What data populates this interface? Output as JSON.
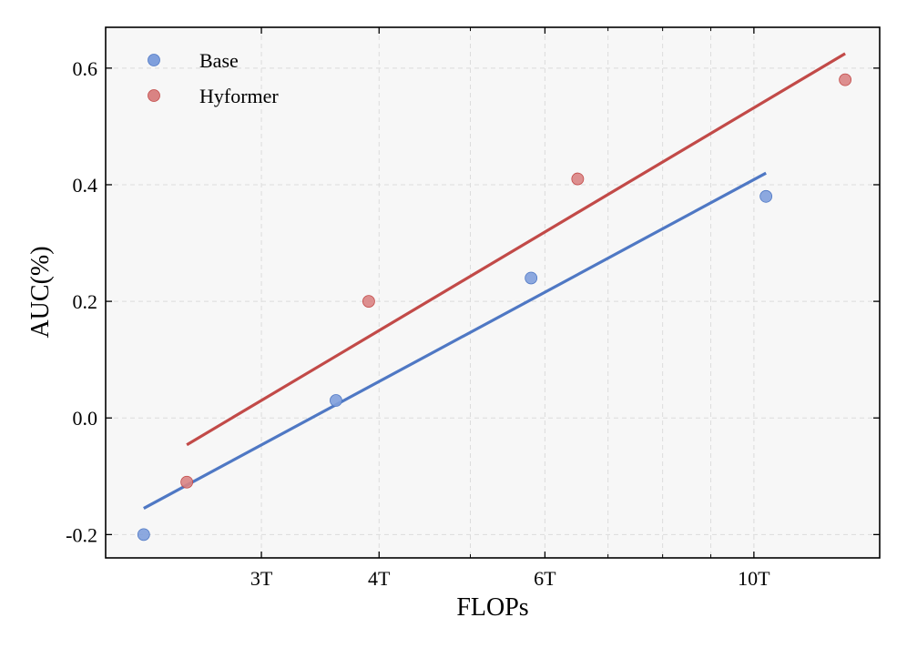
{
  "chart_data": {
    "type": "scatter",
    "xlabel": "FLOPs",
    "ylabel": "AUC(%)",
    "x_scale": "log",
    "xlim": [
      2.05,
      13.6
    ],
    "ylim": [
      -0.24,
      0.67
    ],
    "x_ticks": [
      {
        "value": 3,
        "label": "3T"
      },
      {
        "value": 4,
        "label": "4T"
      },
      {
        "value": 6,
        "label": "6T"
      },
      {
        "value": 10,
        "label": "10T"
      }
    ],
    "x_minor_ticks": [
      5,
      7,
      8,
      9
    ],
    "y_ticks": [
      {
        "value": -0.2,
        "label": "-0.2"
      },
      {
        "value": 0.0,
        "label": "0.0"
      },
      {
        "value": 0.2,
        "label": "0.2"
      },
      {
        "value": 0.4,
        "label": "0.4"
      },
      {
        "value": 0.6,
        "label": "0.6"
      }
    ],
    "grid": true,
    "legend_position": "top-left",
    "series": [
      {
        "name": "Base",
        "color": "#4f78c4",
        "point_color": "#7f9fdc",
        "points": [
          {
            "x": 2.25,
            "y": -0.2
          },
          {
            "x": 3.6,
            "y": 0.03
          },
          {
            "x": 5.8,
            "y": 0.24
          },
          {
            "x": 10.3,
            "y": 0.38
          }
        ],
        "trend": [
          {
            "x": 2.25,
            "y": -0.155
          },
          {
            "x": 10.3,
            "y": 0.42
          }
        ]
      },
      {
        "name": "Hyformer",
        "color": "#c24a48",
        "point_color": "#d98383",
        "points": [
          {
            "x": 2.5,
            "y": -0.11
          },
          {
            "x": 3.9,
            "y": 0.2
          },
          {
            "x": 6.5,
            "y": 0.41
          },
          {
            "x": 12.5,
            "y": 0.58
          }
        ],
        "trend": [
          {
            "x": 2.5,
            "y": -0.046
          },
          {
            "x": 12.5,
            "y": 0.625
          }
        ]
      }
    ]
  }
}
